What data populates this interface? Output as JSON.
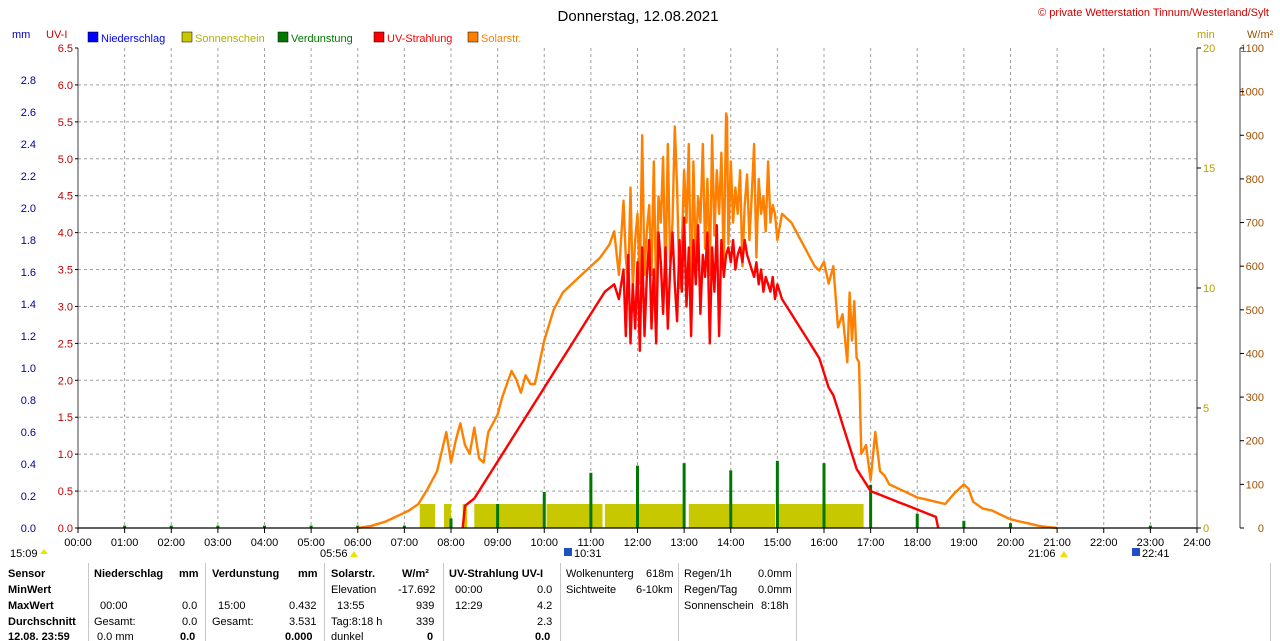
{
  "title": "Donnerstag, 12.08.2021",
  "copyright": "© private Wetterstation Tinnum/Westerland/Sylt",
  "units": {
    "left_outer": "mm",
    "left_inner": "UV-I",
    "right_inner": "min",
    "right_outer": "W/m²"
  },
  "colors": {
    "rain": "#0000ff",
    "sun": "#c8c800",
    "evap": "#007800",
    "uv": "#ff0000",
    "solar": "#ff8000"
  },
  "legend": [
    {
      "label": "Niederschlag",
      "color": "#0000ff"
    },
    {
      "label": "Sonnenschein",
      "color": "#c8c800"
    },
    {
      "label": "Verdunstung",
      "color": "#007800"
    },
    {
      "label": "UV-Strahlung",
      "color": "#ff0000"
    },
    {
      "label": "Solarstr.",
      "color": "#ff8000"
    }
  ],
  "sun_markers": {
    "sunrise": "05:56",
    "sunset": "21:06",
    "left_start": "15:09",
    "moon_1": "10:31",
    "moon_2": "22:41"
  },
  "chart_data": {
    "type": "line",
    "x_unit": "hour",
    "xlim": [
      0,
      24
    ],
    "x_ticks": [
      "00:00",
      "01:00",
      "02:00",
      "03:00",
      "04:00",
      "05:00",
      "06:00",
      "07:00",
      "08:00",
      "09:00",
      "10:00",
      "11:00",
      "12:00",
      "13:00",
      "14:00",
      "15:00",
      "16:00",
      "17:00",
      "18:00",
      "19:00",
      "20:00",
      "21:00",
      "22:00",
      "23:00",
      "24:00"
    ],
    "axes": {
      "mm": {
        "lim": [
          0,
          3.0
        ],
        "ticks": [
          "0.0",
          "0.2",
          "0.4",
          "0.6",
          "0.8",
          "1.0",
          "1.2",
          "1.4",
          "1.6",
          "1.8",
          "2.0",
          "2.2",
          "2.4",
          "2.6",
          "2.8"
        ]
      },
      "uv": {
        "lim": [
          0,
          6.5
        ],
        "ticks": [
          "0.0",
          "0.5",
          "1.0",
          "1.5",
          "2.0",
          "2.5",
          "3.0",
          "3.5",
          "4.0",
          "4.5",
          "5.0",
          "5.5",
          "6.0",
          "6.5"
        ]
      },
      "min": {
        "lim": [
          0,
          20
        ],
        "ticks": [
          "0",
          "5",
          "10",
          "15",
          "20"
        ]
      },
      "wm2": {
        "lim": [
          0,
          1100
        ],
        "ticks": [
          "0",
          "100",
          "200",
          "300",
          "400",
          "500",
          "600",
          "700",
          "800",
          "900",
          "1000",
          "1100"
        ]
      }
    },
    "grid": true,
    "series": [
      {
        "name": "Solarstr.",
        "axis": "wm2",
        "x": [
          6.0,
          6.3,
          6.6,
          6.9,
          7.1,
          7.3,
          7.5,
          7.7,
          7.8,
          7.9,
          8.0,
          8.1,
          8.2,
          8.3,
          8.4,
          8.5,
          8.6,
          8.7,
          8.8,
          8.9,
          9.0,
          9.1,
          9.2,
          9.3,
          9.4,
          9.5,
          9.6,
          9.7,
          9.8,
          9.9,
          10.0,
          10.2,
          10.4,
          10.6,
          10.8,
          11.0,
          11.2,
          11.4,
          11.5,
          11.6,
          11.7,
          11.75,
          11.8,
          11.85,
          11.9,
          11.95,
          12.0,
          12.05,
          12.1,
          12.15,
          12.2,
          12.25,
          12.3,
          12.35,
          12.4,
          12.45,
          12.5,
          12.55,
          12.6,
          12.65,
          12.7,
          12.75,
          12.8,
          12.85,
          12.9,
          12.95,
          13.0,
          13.05,
          13.1,
          13.15,
          13.2,
          13.25,
          13.3,
          13.35,
          13.4,
          13.45,
          13.5,
          13.55,
          13.6,
          13.65,
          13.7,
          13.75,
          13.8,
          13.85,
          13.9,
          13.92,
          13.95,
          14.0,
          14.05,
          14.1,
          14.15,
          14.2,
          14.25,
          14.3,
          14.35,
          14.4,
          14.45,
          14.5,
          14.55,
          14.6,
          14.65,
          14.7,
          14.75,
          14.8,
          14.85,
          14.9,
          14.95,
          15.0,
          15.1,
          15.2,
          15.3,
          15.4,
          15.5,
          15.6,
          15.7,
          15.8,
          15.9,
          16.0,
          16.1,
          16.2,
          16.3,
          16.4,
          16.5,
          16.55,
          16.6,
          16.65,
          16.7,
          16.75,
          16.8,
          16.9,
          17.0,
          17.1,
          17.2,
          17.3,
          17.4,
          17.5,
          17.6,
          17.8,
          18.0,
          18.2,
          18.4,
          18.6,
          18.8,
          19.0,
          19.1,
          19.2,
          19.4,
          19.6,
          19.8,
          20.0,
          20.2,
          20.4,
          20.6,
          20.8,
          21.0
        ],
        "values": [
          0,
          5,
          15,
          30,
          40,
          55,
          90,
          130,
          175,
          220,
          150,
          200,
          240,
          190,
          170,
          230,
          160,
          150,
          220,
          240,
          260,
          300,
          330,
          360,
          340,
          310,
          350,
          330,
          330,
          380,
          430,
          500,
          540,
          560,
          580,
          600,
          620,
          650,
          680,
          580,
          750,
          620,
          560,
          780,
          550,
          660,
          720,
          560,
          900,
          580,
          680,
          740,
          580,
          840,
          520,
          760,
          700,
          850,
          560,
          880,
          610,
          700,
          920,
          780,
          550,
          640,
          820,
          700,
          880,
          520,
          840,
          610,
          760,
          700,
          880,
          640,
          800,
          580,
          900,
          670,
          820,
          720,
          860,
          600,
          950,
          940,
          650,
          840,
          700,
          780,
          720,
          820,
          600,
          740,
          810,
          660,
          760,
          880,
          620,
          800,
          720,
          760,
          680,
          840,
          700,
          740,
          720,
          660,
          720,
          710,
          700,
          680,
          660,
          640,
          620,
          600,
          590,
          610,
          560,
          600,
          460,
          490,
          380,
          540,
          430,
          520,
          390,
          380,
          170,
          190,
          110,
          220,
          130,
          120,
          100,
          95,
          90,
          80,
          70,
          65,
          60,
          55,
          80,
          100,
          90,
          60,
          45,
          40,
          30,
          20,
          15,
          10,
          5,
          2,
          0
        ]
      },
      {
        "name": "UV-Strahlung",
        "axis": "uv",
        "x": [
          8.25,
          8.3,
          8.5,
          8.7,
          8.9,
          9.1,
          9.3,
          9.5,
          9.7,
          9.9,
          10.1,
          10.3,
          10.5,
          10.7,
          10.9,
          11.1,
          11.3,
          11.5,
          11.6,
          11.7,
          11.75,
          11.8,
          11.85,
          11.9,
          11.95,
          12.0,
          12.05,
          12.1,
          12.15,
          12.2,
          12.25,
          12.3,
          12.35,
          12.4,
          12.45,
          12.5,
          12.55,
          12.6,
          12.65,
          12.7,
          12.75,
          12.8,
          12.85,
          12.9,
          12.95,
          13.0,
          13.05,
          13.1,
          13.15,
          13.2,
          13.25,
          13.3,
          13.35,
          13.4,
          13.45,
          13.5,
          13.55,
          13.6,
          13.65,
          13.7,
          13.75,
          13.8,
          13.85,
          13.9,
          13.95,
          14.0,
          14.05,
          14.1,
          14.15,
          14.2,
          14.25,
          14.3,
          14.35,
          14.4,
          14.45,
          14.5,
          14.55,
          14.6,
          14.65,
          14.7,
          14.75,
          14.8,
          14.85,
          14.9,
          14.95,
          15.0,
          15.1,
          15.2,
          15.3,
          15.4,
          15.5,
          15.6,
          15.7,
          15.8,
          15.9,
          16.0,
          16.1,
          16.2,
          16.3,
          16.4,
          16.5,
          16.6,
          16.7,
          16.8,
          16.9,
          17.0,
          17.2,
          17.4,
          17.6,
          17.8,
          18.0,
          18.2,
          18.4,
          18.45
        ],
        "values": [
          0.0,
          0.3,
          0.4,
          0.6,
          0.8,
          1.0,
          1.2,
          1.4,
          1.6,
          1.8,
          2.0,
          2.2,
          2.4,
          2.6,
          2.8,
          3.0,
          3.2,
          3.3,
          3.1,
          3.5,
          2.6,
          3.7,
          2.5,
          3.3,
          2.7,
          3.6,
          2.4,
          3.8,
          2.6,
          3.4,
          3.9,
          2.7,
          3.5,
          2.5,
          4.0,
          3.6,
          2.9,
          3.8,
          2.7,
          3.5,
          4.0,
          3.3,
          2.8,
          3.9,
          3.2,
          4.2,
          3.0,
          3.8,
          2.6,
          3.9,
          3.3,
          4.1,
          2.9,
          3.7,
          3.4,
          4.0,
          2.5,
          3.8,
          3.2,
          4.1,
          2.6,
          3.9,
          3.4,
          3.7,
          3.8,
          3.6,
          3.9,
          3.5,
          3.7,
          3.8,
          3.6,
          3.9,
          3.7,
          3.6,
          3.5,
          3.4,
          3.6,
          3.3,
          3.5,
          3.2,
          3.4,
          3.3,
          3.2,
          3.4,
          3.1,
          3.3,
          3.1,
          3.0,
          2.9,
          2.8,
          2.7,
          2.6,
          2.5,
          2.4,
          2.3,
          2.1,
          1.9,
          1.8,
          1.6,
          1.4,
          1.2,
          1.0,
          0.8,
          0.7,
          0.6,
          0.5,
          0.45,
          0.4,
          0.35,
          0.3,
          0.25,
          0.2,
          0.15,
          0.0
        ]
      }
    ],
    "sunshine_bars": {
      "name": "Sonnenschein",
      "axis": "min",
      "value": 1.0,
      "ranges": [
        [
          7.33,
          7.66
        ],
        [
          7.85,
          8.0
        ],
        [
          8.25,
          8.35
        ],
        [
          8.5,
          10.0
        ],
        [
          10.05,
          11.25
        ],
        [
          11.3,
          13.0
        ],
        [
          13.1,
          14.95
        ],
        [
          15.0,
          16.85
        ]
      ]
    },
    "evaporation_spikes": {
      "name": "Verdunstung",
      "axis": "min",
      "x": [
        1,
        2,
        3,
        4,
        5,
        6,
        7,
        8,
        9,
        10,
        11,
        12,
        13,
        14,
        15,
        16,
        17,
        18,
        19,
        20,
        23
      ],
      "values": [
        0.1,
        0.1,
        0.1,
        0.1,
        0.1,
        0.1,
        0.1,
        0.4,
        1.0,
        1.5,
        2.3,
        2.6,
        2.7,
        2.4,
        2.8,
        2.7,
        1.8,
        0.6,
        0.3,
        0.2,
        0.1
      ]
    }
  },
  "stats": {
    "sensor": {
      "header": "Sensor",
      "rows": [
        "MinWert",
        "MaxWert",
        "Gesamt:",
        "Durchschnitt",
        "12.08. 23:59"
      ]
    },
    "niederschlag": {
      "header": "Niederschlag",
      "unit": "mm",
      "max_time": "00:00",
      "max_val": "0.0",
      "min_val": "",
      "gesamt_val": "0.0",
      "avg_val": "0.0",
      "last_val": "0.0 mm",
      "last_bold": "0.0"
    },
    "verdunstung": {
      "header": "Verdunstung",
      "unit": "mm",
      "max_time": "15:00",
      "max_val": "0.432",
      "gesamt_label": "Gesamt:",
      "gesamt_val": "3.531",
      "last_bold": "0.000"
    },
    "solar": {
      "header": "Solarstr.",
      "unit": "W/m²",
      "elev_label": "Elevation",
      "elev_val": "-17.692",
      "max_time": "13:55",
      "max_val": "939",
      "tag_label": "Tag:8:18 h",
      "tag_val": "339",
      "dunkel_label": "dunkel",
      "dunkel_val": "0"
    },
    "uv": {
      "header": "UV-Strahlung UV-I",
      "min_time": "00:00",
      "min_val": "0.0",
      "max_time": "12:29",
      "max_val": "4.2",
      "avg_val": "2.3",
      "last_val": "0.0"
    },
    "cloud": {
      "base_label": "Wolkenunterg",
      "base_val": "618m",
      "vis_label": "Sichtweite",
      "vis_val": "6-10km"
    },
    "rain": {
      "h_label": "Regen/1h",
      "h_val": "0.0mm",
      "day_label": "Regen/Tag",
      "day_val": "0.0mm",
      "sun_label": "Sonnenschein",
      "sun_val": "8:18h"
    }
  }
}
